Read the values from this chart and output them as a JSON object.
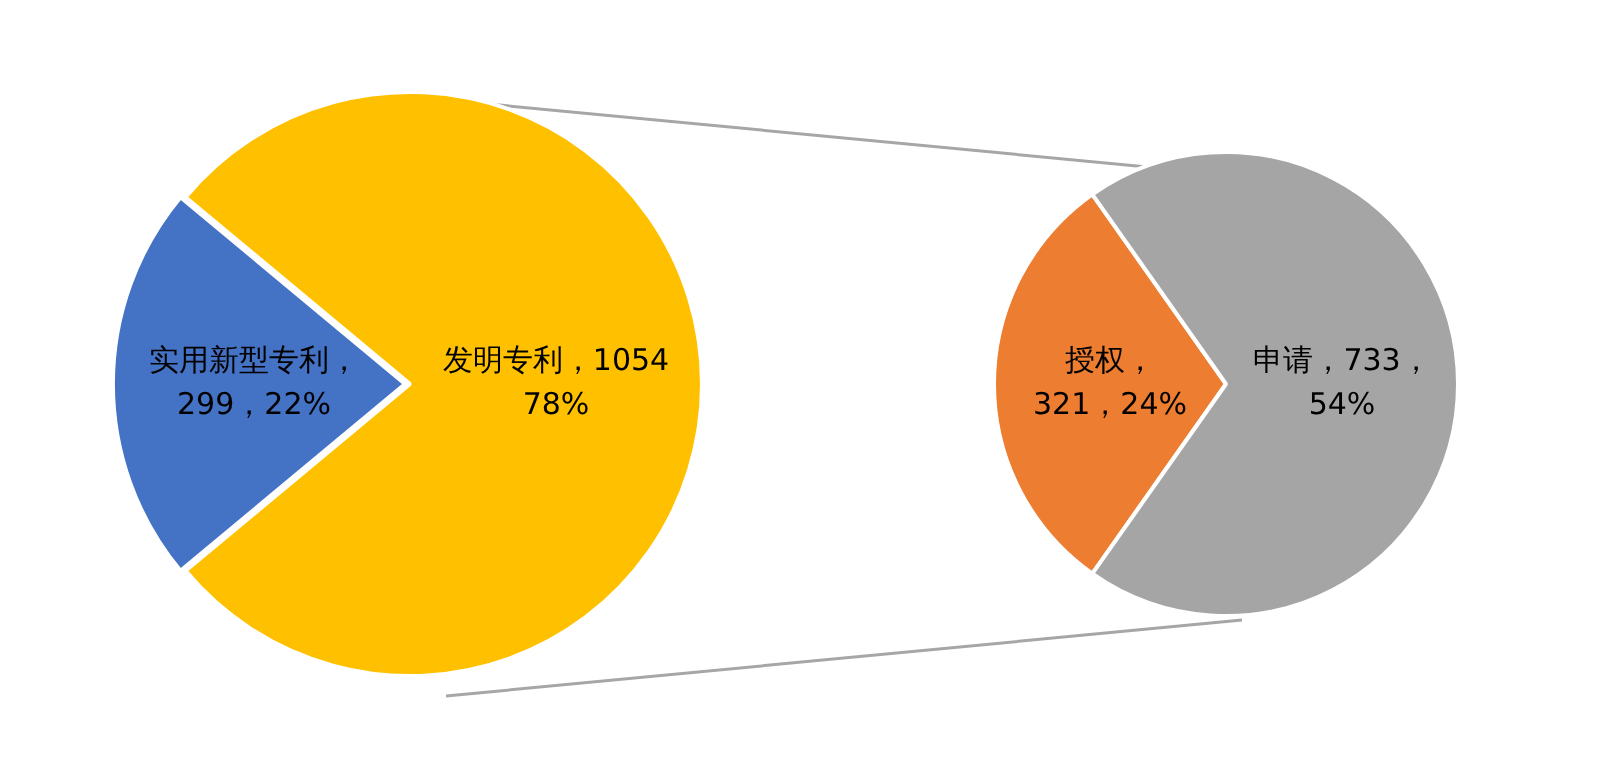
{
  "chart_data": [
    {
      "type": "pie",
      "categories": [
        "实用新型专利",
        "发明专利"
      ],
      "values": [
        299,
        1054
      ],
      "colors": [
        "#4472c4",
        "#ffc000"
      ],
      "value_labels": [
        "，\n299，22%",
        "，1054\n78%"
      ]
    },
    {
      "type": "pie",
      "categories": [
        "授权",
        "申请"
      ],
      "values": [
        321,
        733
      ],
      "colors": [
        "#ed7d31",
        "#a5a5a5"
      ],
      "value_labels": [
        "，\n321，24%",
        "，733，\n54%"
      ]
    }
  ]
}
